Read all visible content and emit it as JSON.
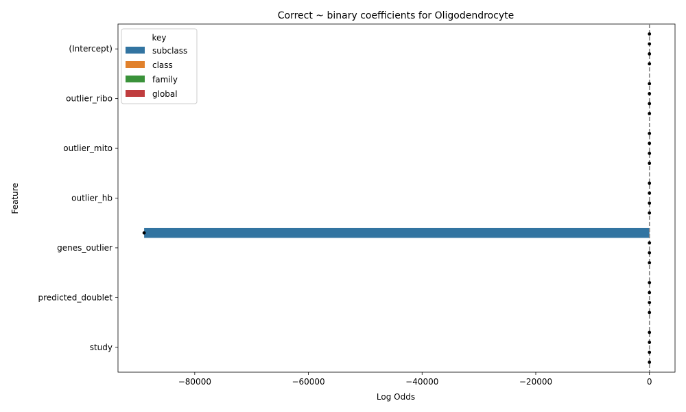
{
  "chart_data": {
    "type": "bar",
    "orientation": "horizontal",
    "title": "Correct ~ binary coefficients for Oligodendrocyte",
    "xlabel": "Log Odds",
    "ylabel": "Feature",
    "categories": [
      "(Intercept)",
      "outlier_ribo",
      "outlier_mito",
      "outlier_hb",
      "genes_outlier",
      "predicted_doublet",
      "study"
    ],
    "xlim": [
      -93500,
      4500
    ],
    "xticks": [
      -80000,
      -60000,
      -40000,
      -20000,
      0
    ],
    "xtick_labels": [
      "−80000",
      "−60000",
      "−40000",
      "−20000",
      "0"
    ],
    "reference_line": {
      "x": 0,
      "style": "dashed",
      "color": "#808080"
    },
    "legend": {
      "title": "key",
      "position": "upper-left"
    },
    "series": [
      {
        "name": "subclass",
        "color": "#3274a1",
        "values": [
          0,
          0,
          0,
          0,
          -88900,
          0,
          0
        ]
      },
      {
        "name": "class",
        "color": "#e1812c",
        "values": [
          0,
          0,
          0,
          0,
          0,
          0,
          0
        ]
      },
      {
        "name": "family",
        "color": "#3a923a",
        "values": [
          0,
          0,
          0,
          0,
          0,
          0,
          0
        ]
      },
      {
        "name": "global",
        "color": "#c03d3e",
        "values": [
          0,
          0,
          0,
          0,
          0,
          0,
          0
        ]
      }
    ],
    "error_bar_color": "#000000"
  }
}
